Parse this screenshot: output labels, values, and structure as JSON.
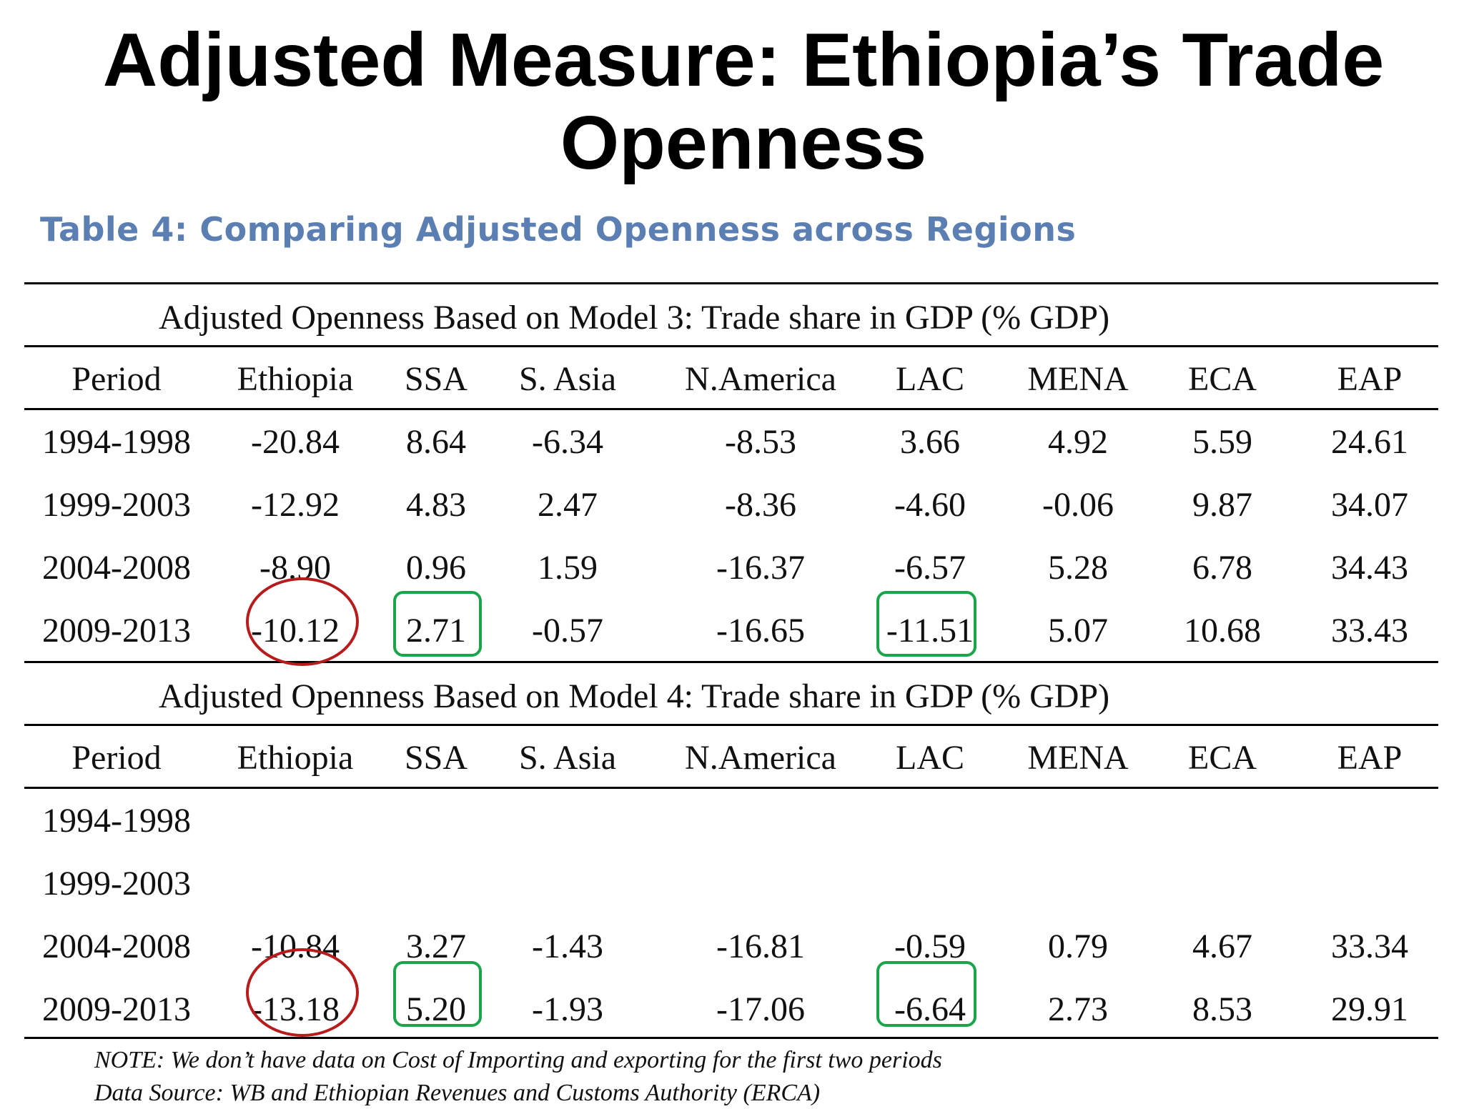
{
  "title_line1": "Adjusted Measure: Ethiopia’s Trade",
  "title_line2": "Openness",
  "table_caption": "Table 4: Comparing Adjusted Openness across Regions",
  "columns": [
    "Period",
    "Ethiopia",
    "SSA",
    "S. Asia",
    "N.America",
    "LAC",
    "MENA",
    "ECA",
    "EAP"
  ],
  "panels": [
    {
      "heading": "Adjusted Openness Based on Model 3: Trade share in GDP (% GDP)",
      "rows": [
        [
          "1994-1998",
          "-20.84",
          "8.64",
          "-6.34",
          "-8.53",
          "3.66",
          "4.92",
          "5.59",
          "24.61"
        ],
        [
          "1999-2003",
          "-12.92",
          "4.83",
          "2.47",
          "-8.36",
          "-4.60",
          "-0.06",
          "9.87",
          "34.07"
        ],
        [
          "2004-2008",
          "-8.90",
          "0.96",
          "1.59",
          "-16.37",
          "-6.57",
          "5.28",
          "6.78",
          "34.43"
        ],
        [
          "2009-2013",
          "-10.12",
          "2.71",
          "-0.57",
          "-16.65",
          "-11.51",
          "5.07",
          "10.68",
          "33.43"
        ]
      ]
    },
    {
      "heading": "Adjusted Openness Based on Model 4: Trade share in GDP (% GDP)",
      "rows": [
        [
          "1994-1998",
          "",
          "",
          "",
          "",
          "",
          "",
          "",
          ""
        ],
        [
          "1999-2003",
          "",
          "",
          "",
          "",
          "",
          "",
          "",
          ""
        ],
        [
          "2004-2008",
          "-10.84",
          "3.27",
          "-1.43",
          "-16.81",
          "-0.59",
          "0.79",
          "4.67",
          "33.34"
        ],
        [
          "2009-2013",
          "-13.18",
          "5.20",
          "-1.93",
          "-17.06",
          "-6.64",
          "2.73",
          "8.53",
          "29.91"
        ]
      ]
    }
  ],
  "note": "NOTE: We don’t have data on Cost of Importing and exporting for the first two periods",
  "source": "Data Source: WB and Ethiopian Revenues and Customs Authority (ERCA)",
  "colors": {
    "caption": "#5b7fb3",
    "circle": "#b81b1b",
    "box": "#1aa54a"
  }
}
